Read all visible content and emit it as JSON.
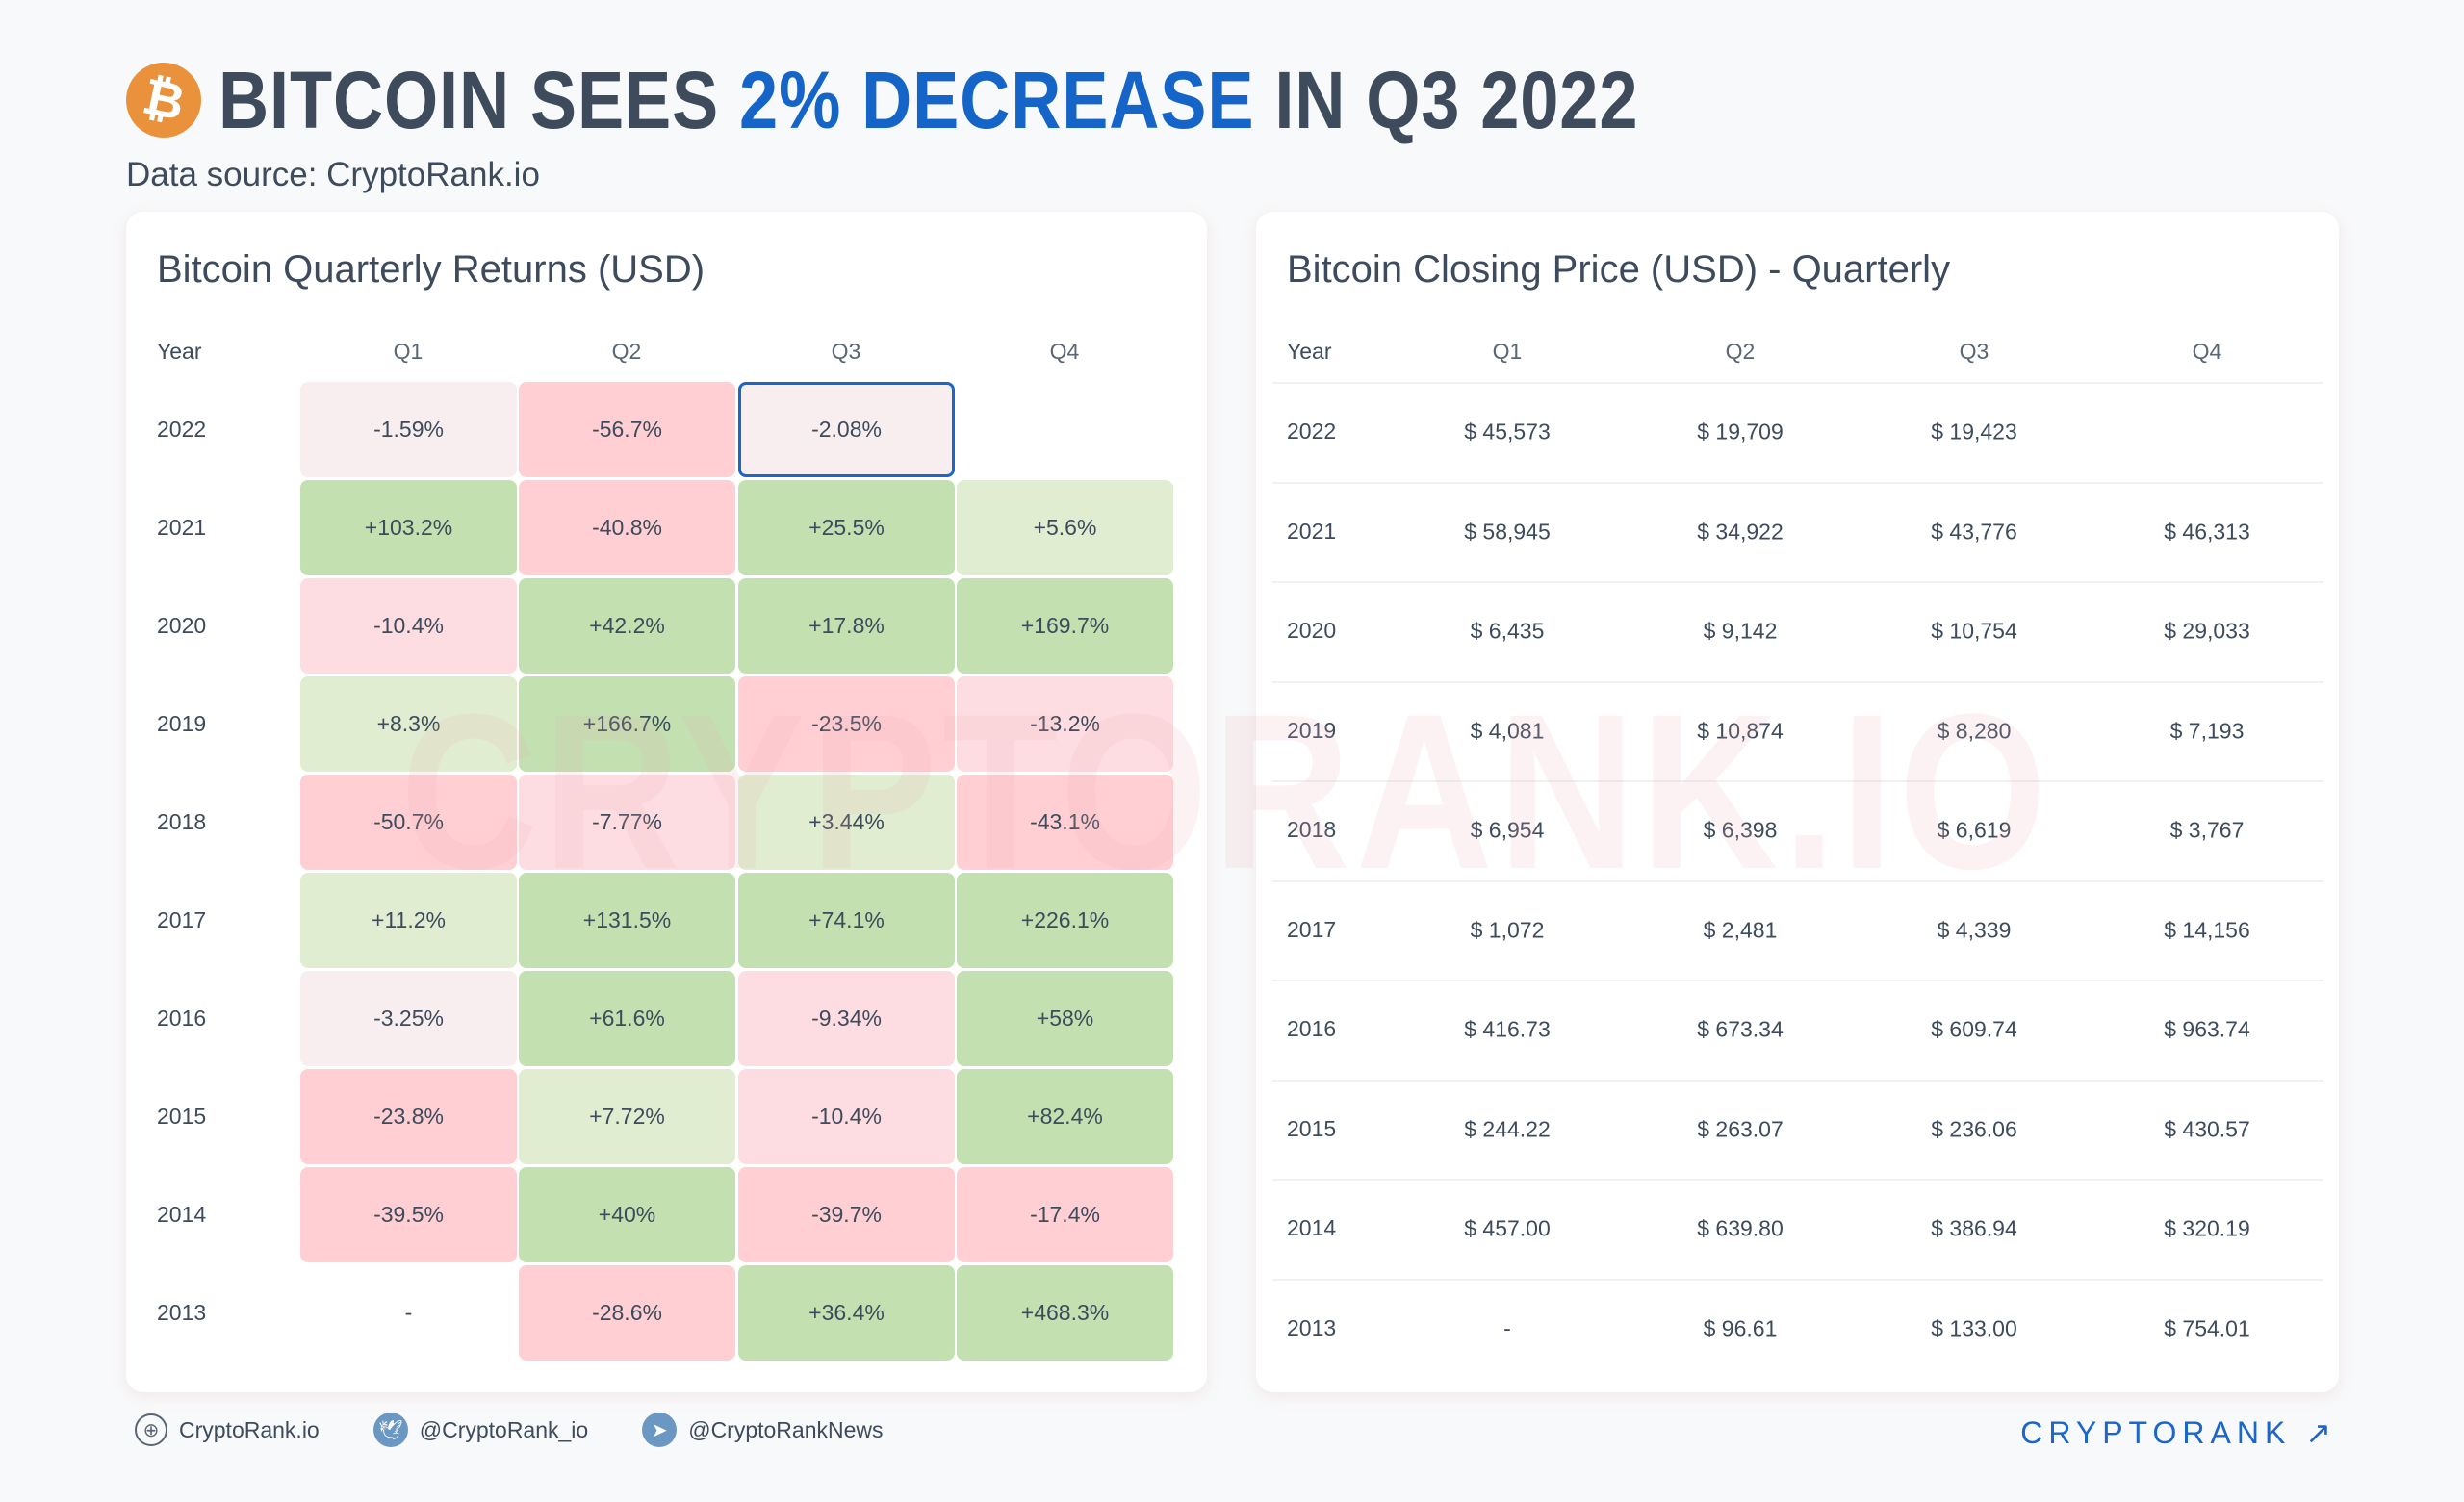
{
  "header": {
    "title_pre": "BITCOIN SEES ",
    "title_hl": "2% DECREASE",
    "title_post": " IN Q3 2022",
    "subtitle": "Data source: CryptoRank.io",
    "icon": "bitcoin-icon"
  },
  "colors": {
    "title": "#3d4b5c",
    "accent": "#1565c8",
    "strong_green": "#c2e0b0",
    "light_green": "#e0edd0",
    "faint_red": "#f8eeef",
    "light_red": "#fddde1",
    "strong_red": "#ffcfd3",
    "selected_border": "#1b66c9"
  },
  "returns": {
    "title": "Bitcoin Quarterly Returns (USD)",
    "columns": [
      "Year",
      "Q1",
      "Q2",
      "Q3",
      "Q4"
    ],
    "rows": [
      {
        "year": "2022",
        "values": [
          "-1.59%",
          "-56.7%",
          "-2.08%",
          ""
        ],
        "selected": 2
      },
      {
        "year": "2021",
        "values": [
          "+103.2%",
          "-40.8%",
          "+25.5%",
          "+5.6%"
        ]
      },
      {
        "year": "2020",
        "values": [
          "-10.4%",
          "+42.2%",
          "+17.8%",
          "+169.7%"
        ]
      },
      {
        "year": "2019",
        "values": [
          "+8.3%",
          "+166.7%",
          "-23.5%",
          "-13.2%"
        ]
      },
      {
        "year": "2018",
        "values": [
          "-50.7%",
          "-7.77%",
          "+3.44%",
          "-43.1%"
        ]
      },
      {
        "year": "2017",
        "values": [
          "+11.2%",
          "+131.5%",
          "+74.1%",
          "+226.1%"
        ]
      },
      {
        "year": "2016",
        "values": [
          "-3.25%",
          "+61.6%",
          "-9.34%",
          "+58%"
        ]
      },
      {
        "year": "2015",
        "values": [
          "-23.8%",
          "+7.72%",
          "-10.4%",
          "+82.4%"
        ]
      },
      {
        "year": "2014",
        "values": [
          "-39.5%",
          "+40%",
          "-39.7%",
          "-17.4%"
        ]
      },
      {
        "year": "2013",
        "values": [
          "-",
          "-28.6%",
          "+36.4%",
          "+468.3%"
        ]
      }
    ]
  },
  "prices": {
    "title": "Bitcoin Closing Price (USD) - Quarterly",
    "columns": [
      "Year",
      "Q1",
      "Q2",
      "Q3",
      "Q4"
    ],
    "rows": [
      {
        "year": "2022",
        "values": [
          "$ 45,573",
          "$ 19,709",
          "$ 19,423",
          ""
        ]
      },
      {
        "year": "2021",
        "values": [
          "$ 58,945",
          "$ 34,922",
          "$ 43,776",
          "$ 46,313"
        ]
      },
      {
        "year": "2020",
        "values": [
          "$ 6,435",
          "$ 9,142",
          "$ 10,754",
          "$ 29,033"
        ]
      },
      {
        "year": "2019",
        "values": [
          "$ 4,081",
          "$ 10,874",
          "$ 8,280",
          "$ 7,193"
        ]
      },
      {
        "year": "2018",
        "values": [
          "$ 6,954",
          "$ 6,398",
          "$ 6,619",
          "$ 3,767"
        ]
      },
      {
        "year": "2017",
        "values": [
          "$ 1,072",
          "$ 2,481",
          "$ 4,339",
          "$ 14,156"
        ]
      },
      {
        "year": "2016",
        "values": [
          "$ 416.73",
          "$ 673.34",
          "$ 609.74",
          "$ 963.74"
        ]
      },
      {
        "year": "2015",
        "values": [
          "$ 244.22",
          "$ 263.07",
          "$ 236.06",
          "$ 430.57"
        ]
      },
      {
        "year": "2014",
        "values": [
          "$ 457.00",
          "$ 639.80",
          "$ 386.94",
          "$ 320.19"
        ]
      },
      {
        "year": "2013",
        "values": [
          "-",
          "$ 96.61",
          "$ 133.00",
          "$ 754.01"
        ]
      }
    ]
  },
  "watermark": "CRYPTORANK.IO",
  "footer": {
    "links": [
      {
        "icon": "globe-icon",
        "label": "CryptoRank.io"
      },
      {
        "icon": "twitter-icon",
        "label": "@CryptoRank_io"
      },
      {
        "icon": "telegram-icon",
        "label": "@CryptoRankNews"
      }
    ],
    "brand": "CRYPTORANK ↗"
  }
}
